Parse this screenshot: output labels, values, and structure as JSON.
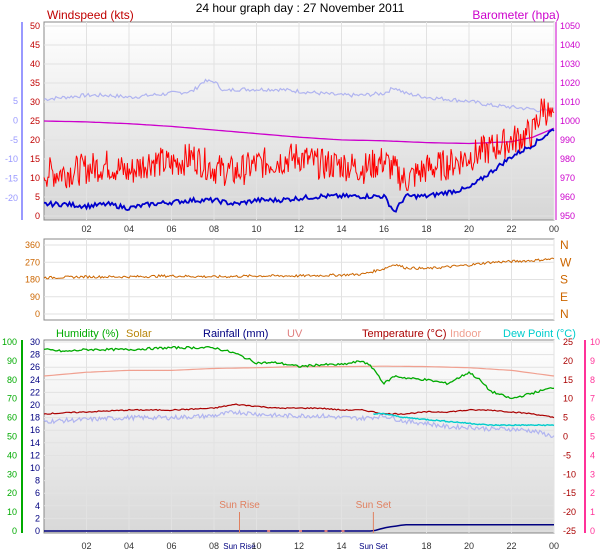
{
  "title": "24 hour graph day : 27 November 2011",
  "colors": {
    "windspeed": "#c00000",
    "gust": "#ff0000",
    "windavg": "#0000cc",
    "temp_outdoor_light": "#b0b4f0",
    "barometer": "#cc00cc",
    "direction": "#cc6600",
    "humidity": "#00aa00",
    "solar": "#b8860b",
    "rainfall": "#000080",
    "uv": "#e08080",
    "temperature": "#aa0000",
    "indoor": "#f0a090",
    "dewpoint": "#00cccc",
    "sun_marker": "#e08060",
    "axis_left_top": "#9999ff",
    "axis_right_bottom": "#ff3399"
  },
  "chart_data": [
    {
      "type": "line",
      "panel": "wind_baro",
      "left_label": "Windspeed (kts)",
      "right_label": "Barometer (hpa)",
      "left_ticks": [
        "50",
        "45",
        "40",
        "35",
        "30",
        "25",
        "20",
        "15",
        "10",
        "5",
        "0"
      ],
      "left_range": [
        0,
        50
      ],
      "outer_ticks": [
        "5",
        "0",
        "-5",
        "-10",
        "-15",
        "-20"
      ],
      "right_ticks": [
        "1050",
        "1040",
        "1030",
        "1020",
        "1010",
        "1000",
        "990",
        "980",
        "970",
        "960",
        "950"
      ],
      "right_range": [
        945,
        1055
      ],
      "x_ticks": [
        "02",
        "04",
        "06",
        "08",
        "10",
        "12",
        "14",
        "16",
        "18",
        "20",
        "22",
        "00"
      ],
      "x_range": [
        0,
        24
      ],
      "series": [
        {
          "key": "outer_temp",
          "x": [
            0,
            1,
            2,
            3,
            4,
            5,
            6,
            7,
            7.5,
            8,
            8.5,
            9,
            10,
            11,
            12,
            13,
            14,
            15,
            16,
            16.5,
            17,
            18,
            19,
            20,
            21,
            22,
            23,
            23.5,
            24
          ],
          "values": [
            30.5,
            31,
            31.5,
            31.5,
            31,
            31.5,
            32,
            32.5,
            35,
            35,
            32.5,
            33,
            33,
            33,
            32.5,
            32,
            31.5,
            31.5,
            32,
            33.5,
            32,
            31,
            30.5,
            30,
            29,
            28.5,
            28,
            27.5,
            28
          ]
        },
        {
          "key": "barometer",
          "x": [
            0,
            2,
            4,
            6,
            8,
            10,
            12,
            14,
            16,
            18,
            20,
            22,
            23,
            24
          ],
          "values": [
            1000,
            999.5,
            998.5,
            997,
            995,
            993,
            991,
            989.5,
            989,
            988,
            987.5,
            988.5,
            991,
            996
          ]
        },
        {
          "key": "gust",
          "x": [
            0,
            1,
            2,
            3,
            4,
            5,
            6,
            7,
            8,
            9,
            10,
            11,
            12,
            13,
            14,
            15,
            16,
            17,
            18,
            19,
            20,
            21,
            22,
            23,
            23.5,
            24
          ],
          "values": [
            12,
            12,
            13,
            14,
            12,
            15,
            14,
            16,
            13,
            12,
            14,
            15,
            16,
            14,
            14,
            13,
            15,
            10,
            13,
            14,
            16,
            18,
            20,
            22,
            29,
            24
          ]
        },
        {
          "key": "windavg",
          "x": [
            0,
            1,
            2,
            3,
            4,
            5,
            6,
            7,
            8,
            9,
            10,
            11,
            12,
            13,
            14,
            15,
            16,
            16.5,
            17,
            18,
            19,
            20,
            21,
            22,
            23,
            24
          ],
          "values": [
            4,
            4,
            3.5,
            4,
            3,
            4,
            4.5,
            5,
            5,
            4,
            5,
            5,
            5.5,
            6,
            6,
            6,
            6,
            2,
            6,
            6,
            7,
            8,
            12,
            16,
            19,
            23
          ]
        }
      ]
    },
    {
      "type": "line",
      "panel": "direction",
      "left_ticks": [
        "360",
        "270",
        "180",
        "90",
        "0"
      ],
      "right_ticks": [
        "N",
        "W",
        "S",
        "E",
        "N"
      ],
      "y_range": [
        0,
        360
      ],
      "series": [
        {
          "key": "direction",
          "x": [
            0,
            2,
            4,
            6,
            8,
            10,
            12,
            14,
            15,
            16,
            16.5,
            17,
            18,
            19,
            20,
            21,
            22,
            23,
            24
          ],
          "values": [
            190,
            195,
            195,
            200,
            195,
            200,
            200,
            205,
            210,
            240,
            265,
            245,
            240,
            250,
            260,
            275,
            280,
            285,
            295
          ]
        }
      ]
    },
    {
      "type": "line",
      "panel": "temp_hum",
      "legend": [
        {
          "key": "humidity",
          "label": "Humidity (%)"
        },
        {
          "key": "solar",
          "label": "Solar"
        },
        {
          "key": "rainfall",
          "label": "Rainfall (mm)"
        },
        {
          "key": "uv",
          "label": "UV"
        },
        {
          "key": "temperature",
          "label": "Temperature (°C)"
        },
        {
          "key": "indoor",
          "label": "Indoor"
        },
        {
          "key": "dewpoint",
          "label": "Dew Point (°C)"
        }
      ],
      "humidity_ticks": [
        "100",
        "90",
        "80",
        "70",
        "60",
        "50",
        "40",
        "30",
        "20",
        "10",
        "0"
      ],
      "humidity_range": [
        0,
        100
      ],
      "rain_ticks": [
        "30",
        "28",
        "26",
        "24",
        "22",
        "20",
        "18",
        "16",
        "14",
        "12",
        "10",
        "8",
        "6",
        "4",
        "2",
        "0"
      ],
      "temp_ticks": [
        "25",
        "20",
        "15",
        "10",
        "5",
        "0",
        "-5",
        "-10",
        "-15",
        "-20",
        "-25"
      ],
      "temp_range": [
        -25,
        25
      ],
      "uv_ticks": [
        "10",
        "9",
        "8",
        "7",
        "6",
        "5",
        "4",
        "3",
        "2",
        "1",
        "0"
      ],
      "x_ticks": [
        "02",
        "04",
        "06",
        "08",
        "Sun Rise",
        "10",
        "12",
        "14",
        "Sun Set",
        "18",
        "20",
        "22",
        "00"
      ],
      "x_tick_pos": [
        2,
        4,
        6,
        8,
        9.2,
        10,
        12,
        14,
        15.5,
        18,
        20,
        22,
        24
      ],
      "sunrise_label": "Sun Rise",
      "sunset_label": "Sun Set",
      "sunrise_x": 9.2,
      "sunset_x": 15.5,
      "series": [
        {
          "key": "humidity",
          "x": [
            0,
            1,
            2,
            4,
            6,
            8,
            9,
            10,
            11,
            12,
            13,
            14,
            15,
            15.5,
            16,
            16.5,
            17,
            18,
            19,
            20,
            20.5,
            21,
            22,
            23,
            24
          ],
          "values": [
            96,
            95,
            96,
            96,
            97,
            97,
            94,
            89,
            89,
            87,
            88,
            88,
            90,
            86,
            78,
            82,
            81,
            80,
            78,
            84,
            80,
            74,
            70,
            73,
            76
          ]
        },
        {
          "key": "indoor",
          "x": [
            0,
            2,
            4,
            6,
            8,
            10,
            12,
            14,
            16,
            18,
            20,
            22,
            24
          ],
          "values": [
            16,
            17,
            17.5,
            17.5,
            18,
            18.2,
            18.5,
            18.5,
            18.6,
            18.5,
            18.2,
            17.5,
            16
          ]
        },
        {
          "key": "temperature",
          "x": [
            0,
            2,
            4,
            6,
            8,
            9,
            10,
            11,
            12,
            13,
            14,
            15,
            16,
            17,
            18,
            19,
            20,
            21,
            22,
            23,
            24
          ],
          "values": [
            6,
            6.5,
            7,
            7,
            7.5,
            8.5,
            8,
            7.5,
            7.5,
            7.5,
            7,
            7,
            6,
            6,
            6.5,
            6.5,
            7,
            7,
            6.5,
            6,
            5
          ]
        },
        {
          "key": "outer_temp",
          "x": [
            0,
            2,
            4,
            6,
            8,
            9,
            10,
            11,
            12,
            13,
            14,
            15,
            16,
            17,
            18,
            19,
            20,
            21,
            22,
            23,
            24
          ],
          "values": [
            4,
            4.5,
            5,
            5,
            5.5,
            6.5,
            6,
            5.5,
            5.5,
            5.5,
            5,
            4.8,
            5.5,
            4,
            3.5,
            2.5,
            2.5,
            2,
            2,
            1.5,
            0
          ]
        },
        {
          "key": "dewpoint",
          "x": [
            15.5,
            16,
            17,
            18,
            19,
            20,
            21,
            22,
            23,
            24
          ],
          "values": [
            6,
            6,
            5,
            4.5,
            4,
            3.5,
            3,
            3,
            3,
            3
          ]
        },
        {
          "key": "rainfall",
          "x": [
            0,
            15.5,
            16,
            17,
            24
          ],
          "values": [
            0,
            0,
            0.5,
            1,
            1
          ]
        }
      ]
    }
  ]
}
